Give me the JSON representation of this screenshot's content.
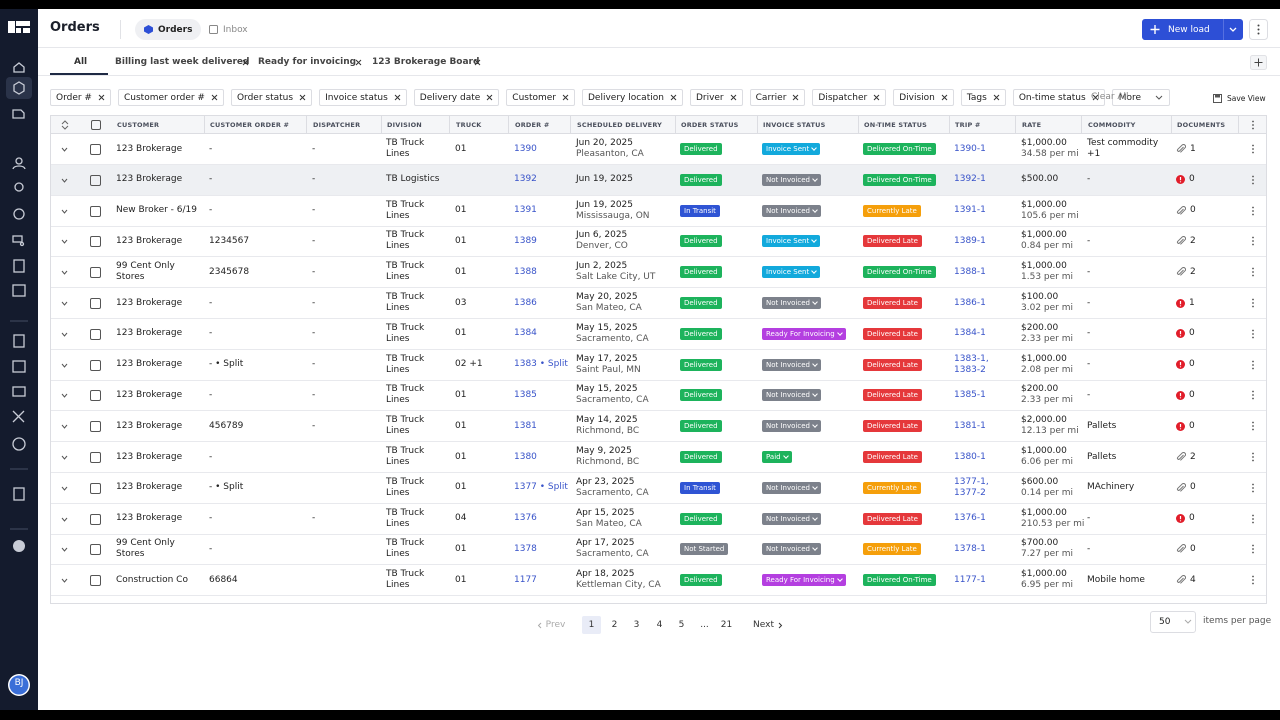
{
  "sidebar": {
    "avatar": "BJ"
  },
  "header": {
    "title": "Orders",
    "tabs": [
      "Orders",
      "Inbox"
    ],
    "new_button": "New load"
  },
  "views": [
    "All",
    "Billing last week delivered",
    "Ready for invoicing",
    "123 Brokerage Board"
  ],
  "filters": [
    "Order #",
    "Customer order #",
    "Order status",
    "Invoice status",
    "Delivery date",
    "Customer",
    "Delivery location",
    "Driver",
    "Carrier",
    "Dispatcher",
    "Division",
    "Tags",
    "On-time status"
  ],
  "filter_more": "More",
  "clear_all": "Clear All",
  "save_view": "Save View",
  "table": {
    "columns": [
      "CUSTOMER",
      "CUSTOMER ORDER #",
      "DISPATCHER",
      "DIVISION",
      "TRUCK",
      "ORDER #",
      "SCHEDULED DELIVERY",
      "ORDER STATUS",
      "INVOICE STATUS",
      "ON-TIME STATUS",
      "TRIP #",
      "RATE",
      "COMMODITY",
      "DOCUMENTS"
    ],
    "rows": [
      {
        "customer": "123 Brokerage",
        "customer_order": "-",
        "dispatcher": "-",
        "division": "TB Truck Lines",
        "truck": "01",
        "order": "1390",
        "date": "Jun 20, 2025",
        "location": "Pleasanton, CA",
        "order_status": {
          "text": "Delivered",
          "color": "#1db35c"
        },
        "invoice_status": {
          "text": "Invoice Sent",
          "color": "#12a9dc"
        },
        "on_time": {
          "text": "Delivered On-Time",
          "color": "#1db35c"
        },
        "trip": "1390-1",
        "rate": "$1,000.00",
        "per_mi": "34.58 per mi",
        "commodity": "Test commodity +1",
        "documents": "1",
        "doc_icon": "attachment"
      },
      {
        "customer": "123 Brokerage",
        "customer_order": "-",
        "dispatcher": "-",
        "division": "TB Logistics",
        "order": "1392",
        "date": "Jun 19, 2025",
        "order_status": {
          "text": "Delivered",
          "color": "#1db35c"
        },
        "invoice_status": {
          "text": "Not Invoiced",
          "color": "#7c818b"
        },
        "on_time": {
          "text": "Delivered On-Time",
          "color": "#1db35c"
        },
        "trip": "1392-1",
        "rate": "$500.00",
        "commodity": "-",
        "documents": "0",
        "doc_icon": "alert",
        "highlight": true
      },
      {
        "customer": "New Broker - 6/19",
        "customer_order": "-",
        "dispatcher": "-",
        "division": "TB Truck Lines",
        "truck": "01",
        "order": "1391",
        "date": "Jun 19, 2025",
        "location": "Mississauga, ON",
        "order_status": {
          "text": "In Transit",
          "color": "#2f54d4"
        },
        "invoice_status": {
          "text": "Not Invoiced",
          "color": "#7c818b"
        },
        "on_time": {
          "text": "Currently Late",
          "color": "#f59f0b"
        },
        "trip": "1391-1",
        "rate": "$1,000.00",
        "per_mi": "105.6 per mi",
        "documents": "0",
        "doc_icon": "attachment"
      },
      {
        "customer": "123 Brokerage",
        "customer_order": "1234567",
        "dispatcher": "-",
        "division": "TB Truck Lines",
        "truck": "01",
        "order": "1389",
        "date": "Jun 6, 2025",
        "location": "Denver, CO",
        "order_status": {
          "text": "Delivered",
          "color": "#1db35c"
        },
        "invoice_status": {
          "text": "Invoice Sent",
          "color": "#12a9dc"
        },
        "on_time": {
          "text": "Delivered Late",
          "color": "#e5383b"
        },
        "trip": "1389-1",
        "rate": "$1,000.00",
        "per_mi": "0.84 per mi",
        "commodity": "-",
        "documents": "2",
        "doc_icon": "attachment"
      },
      {
        "customer": "99 Cent Only Stores",
        "customer_order": "2345678",
        "dispatcher": "-",
        "division": "TB Truck Lines",
        "truck": "01",
        "order": "1388",
        "date": "Jun 2, 2025",
        "location": "Salt Lake City, UT",
        "order_status": {
          "text": "Delivered",
          "color": "#1db35c"
        },
        "invoice_status": {
          "text": "Invoice Sent",
          "color": "#12a9dc"
        },
        "on_time": {
          "text": "Delivered On-Time",
          "color": "#1db35c"
        },
        "trip": "1388-1",
        "rate": "$1,000.00",
        "per_mi": "1.53 per mi",
        "commodity": "-",
        "documents": "2",
        "doc_icon": "attachment"
      },
      {
        "customer": "123 Brokerage",
        "customer_order": "-",
        "dispatcher": "-",
        "division": "TB Truck Lines",
        "truck": "03",
        "order": "1386",
        "date": "May 20, 2025",
        "location": "San Mateo, CA",
        "order_status": {
          "text": "Delivered",
          "color": "#1db35c"
        },
        "invoice_status": {
          "text": "Not Invoiced",
          "color": "#7c818b"
        },
        "on_time": {
          "text": "Delivered Late",
          "color": "#e5383b"
        },
        "trip": "1386-1",
        "rate": "$100.00",
        "per_mi": "3.02 per mi",
        "commodity": "-",
        "documents": "1",
        "doc_icon": "alert"
      },
      {
        "customer": "123 Brokerage",
        "customer_order": "-",
        "dispatcher": "-",
        "division": "TB Truck Lines",
        "truck": "01",
        "order": "1384",
        "date": "May 15, 2025",
        "location": "Sacramento, CA",
        "order_status": {
          "text": "Delivered",
          "color": "#1db35c"
        },
        "invoice_status": {
          "text": "Ready For Invoicing",
          "color": "#b43fe0"
        },
        "on_time": {
          "text": "Delivered Late",
          "color": "#e5383b"
        },
        "trip": "1384-1",
        "rate": "$200.00",
        "per_mi": "2.33 per mi",
        "commodity": "-",
        "documents": "0",
        "doc_icon": "alert"
      },
      {
        "customer": "123 Brokerage",
        "customer_order": "- • Split",
        "dispatcher": "-",
        "division": "TB Truck Lines",
        "truck": "02 +1",
        "order": "1383 • Split",
        "date": "May 17, 2025",
        "location": "Saint Paul, MN",
        "order_status": {
          "text": "Delivered",
          "color": "#1db35c"
        },
        "invoice_status": {
          "text": "Not Invoiced",
          "color": "#7c818b"
        },
        "on_time": {
          "text": "Delivered Late",
          "color": "#e5383b"
        },
        "trip": "1383-1, 1383-2",
        "rate": "$1,000.00",
        "per_mi": "2.08 per mi",
        "commodity": "-",
        "documents": "0",
        "doc_icon": "alert"
      },
      {
        "customer": "123 Brokerage",
        "customer_order": "-",
        "dispatcher": "-",
        "division": "TB Truck Lines",
        "truck": "01",
        "order": "1385",
        "date": "May 15, 2025",
        "location": "Sacramento, CA",
        "order_status": {
          "text": "Delivered",
          "color": "#1db35c"
        },
        "invoice_status": {
          "text": "Not Invoiced",
          "color": "#7c818b"
        },
        "on_time": {
          "text": "Delivered Late",
          "color": "#e5383b"
        },
        "trip": "1385-1",
        "rate": "$200.00",
        "per_mi": "2.33 per mi",
        "commodity": "-",
        "documents": "0",
        "doc_icon": "alert"
      },
      {
        "customer": "123 Brokerage",
        "customer_order": "456789",
        "dispatcher": "-",
        "division": "TB Truck Lines",
        "truck": "01",
        "order": "1381",
        "date": "May 14, 2025",
        "location": "Richmond, BC",
        "order_status": {
          "text": "Delivered",
          "color": "#1db35c"
        },
        "invoice_status": {
          "text": "Not Invoiced",
          "color": "#7c818b"
        },
        "on_time": {
          "text": "Delivered Late",
          "color": "#e5383b"
        },
        "trip": "1381-1",
        "rate": "$2,000.00",
        "per_mi": "12.13 per mi",
        "commodity": "Pallets",
        "documents": "0",
        "doc_icon": "alert"
      },
      {
        "customer": "123 Brokerage",
        "customer_order": "-",
        "division": "TB Truck Lines",
        "truck": "01",
        "order": "1380",
        "date": "May 9, 2025",
        "location": "Richmond, BC",
        "order_status": {
          "text": "Delivered",
          "color": "#1db35c"
        },
        "invoice_status": {
          "text": "Paid",
          "color": "#1db35c"
        },
        "on_time": {
          "text": "Delivered Late",
          "color": "#e5383b"
        },
        "trip": "1380-1",
        "rate": "$1,000.00",
        "per_mi": "6.06 per mi",
        "commodity": "Pallets",
        "documents": "2",
        "doc_icon": "attachment"
      },
      {
        "customer": "123 Brokerage",
        "customer_order": "- • Split",
        "division": "TB Truck Lines",
        "truck": "01",
        "order": "1377 • Split",
        "date": "Apr 23, 2025",
        "location": "Sacramento, CA",
        "order_status": {
          "text": "In Transit",
          "color": "#2f54d4"
        },
        "invoice_status": {
          "text": "Not Invoiced",
          "color": "#7c818b"
        },
        "on_time": {
          "text": "Currently Late",
          "color": "#f59f0b"
        },
        "trip": "1377-1, 1377-2",
        "rate": "$600.00",
        "per_mi": "0.14 per mi",
        "commodity": "MAchinery",
        "documents": "0",
        "doc_icon": "attachment"
      },
      {
        "customer": "123 Brokerage",
        "customer_order": "-",
        "dispatcher": "-",
        "division": "TB Truck Lines",
        "truck": "04",
        "order": "1376",
        "date": "Apr 15, 2025",
        "location": "San Mateo, CA",
        "order_status": {
          "text": "Delivered",
          "color": "#1db35c"
        },
        "invoice_status": {
          "text": "Not Invoiced",
          "color": "#7c818b"
        },
        "on_time": {
          "text": "Delivered Late",
          "color": "#e5383b"
        },
        "trip": "1376-1",
        "rate": "$1,000.00",
        "per_mi": "210.53 per mi",
        "commodity": "-",
        "documents": "0",
        "doc_icon": "alert"
      },
      {
        "customer": "99 Cent Only Stores",
        "customer_order": "-",
        "division": "TB Truck Lines",
        "truck": "01",
        "order": "1378",
        "date": "Apr 17, 2025",
        "location": "Sacramento, CA",
        "order_status": {
          "text": "Not Started",
          "color": "#7c818b"
        },
        "invoice_status": {
          "text": "Not Invoiced",
          "color": "#7c818b"
        },
        "on_time": {
          "text": "Currently Late",
          "color": "#f59f0b"
        },
        "trip": "1378-1",
        "rate": "$700.00",
        "per_mi": "7.27 per mi",
        "commodity": "-",
        "documents": "0",
        "doc_icon": "attachment"
      },
      {
        "customer": "Construction Co",
        "customer_order": "66864",
        "division": "TB Truck Lines",
        "truck": "01",
        "order": "1177",
        "date": "Apr 18, 2025",
        "location": "Kettleman City, CA",
        "order_status": {
          "text": "Delivered",
          "color": "#1db35c"
        },
        "invoice_status": {
          "text": "Ready For Invoicing",
          "color": "#b43fe0"
        },
        "on_time": {
          "text": "Delivered On-Time",
          "color": "#1db35c"
        },
        "trip": "1177-1",
        "rate": "$1,000.00",
        "per_mi": "6.95 per mi",
        "commodity": "Mobile home",
        "documents": "4",
        "doc_icon": "attachment"
      }
    ]
  },
  "pagination": {
    "prev": "Prev",
    "pages": [
      "1",
      "2",
      "3",
      "4",
      "5",
      "...",
      "21"
    ],
    "current": 0,
    "next": "Next",
    "page_size": "50",
    "page_size_label": "items per page"
  }
}
